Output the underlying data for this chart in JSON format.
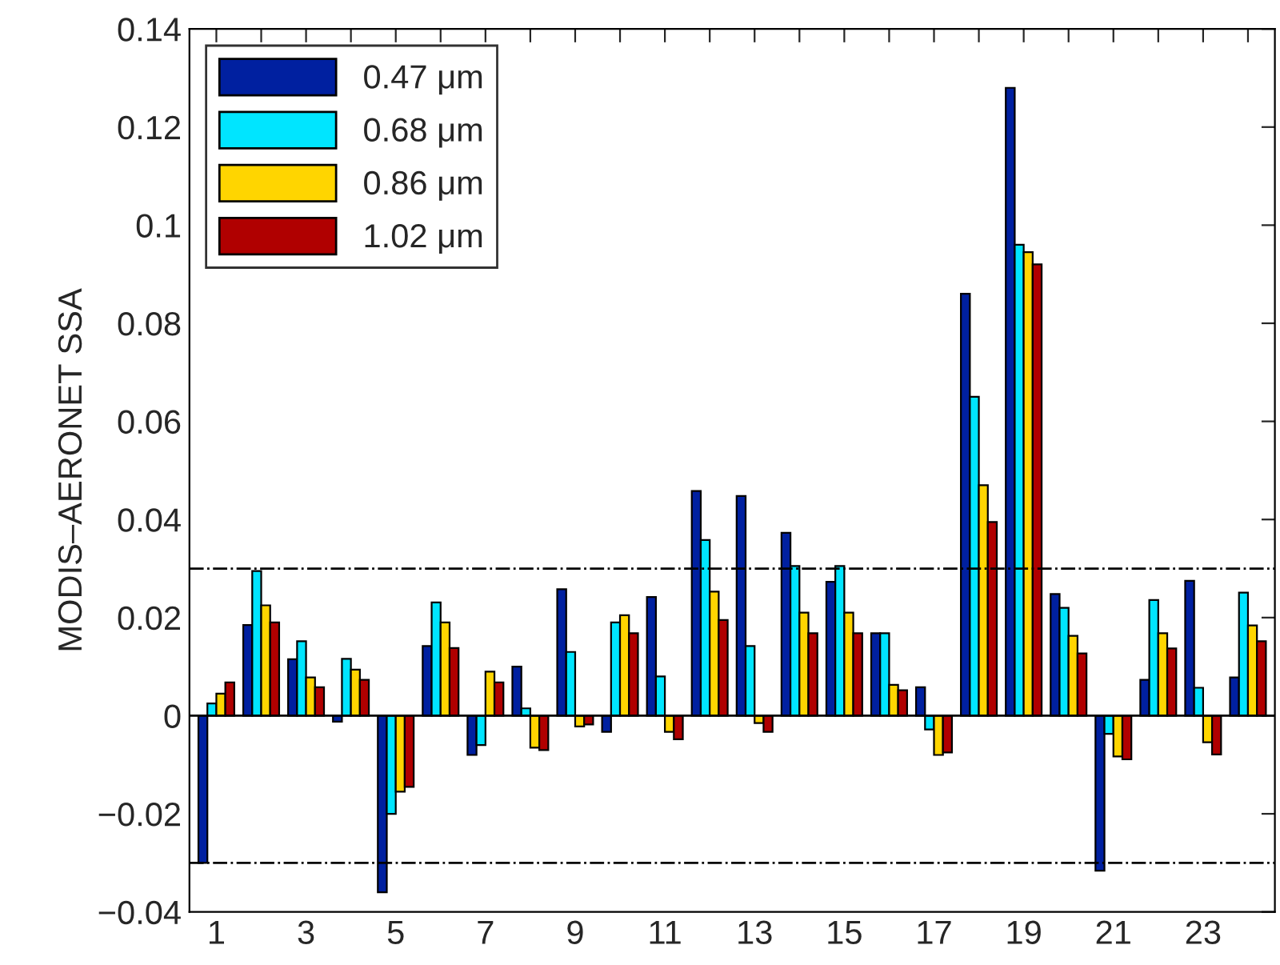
{
  "chart_data": {
    "type": "bar",
    "ylabel": "MODIS–AERONET SSA",
    "categories": [
      "1",
      null,
      "3",
      null,
      "5",
      null,
      "7",
      null,
      "9",
      null,
      "11",
      null,
      "13",
      null,
      "15",
      null,
      "17",
      null,
      "19",
      null,
      "21",
      null,
      "23",
      null
    ],
    "series": [
      {
        "name": "0.47 μm",
        "color": "#0020a0",
        "values": [
          -0.03,
          0.0185,
          0.0115,
          -0.0012,
          -0.036,
          0.0142,
          -0.008,
          0.01,
          0.0258,
          -0.0033,
          0.0242,
          0.0458,
          0.0448,
          0.0373,
          0.0273,
          0.0168,
          0.0058,
          0.086,
          0.128,
          0.0248,
          -0.0316,
          0.0073,
          0.0275,
          0.0078
        ]
      },
      {
        "name": "0.68 μm",
        "color": "#00e5ff",
        "values": [
          0.0025,
          0.0295,
          0.0152,
          0.0116,
          -0.02,
          0.0231,
          -0.006,
          0.0015,
          0.013,
          0.019,
          0.008,
          0.0358,
          0.0142,
          0.0305,
          0.0305,
          0.0168,
          -0.0028,
          0.065,
          0.096,
          0.022,
          -0.0037,
          0.0236,
          0.0057,
          0.0251
        ]
      },
      {
        "name": "0.86 μm",
        "color": "#ffd500",
        "values": [
          0.0045,
          0.0225,
          0.0078,
          0.0094,
          -0.0155,
          0.019,
          0.009,
          -0.0065,
          -0.0022,
          0.0205,
          -0.0033,
          0.0253,
          -0.0015,
          0.021,
          0.021,
          0.0063,
          -0.008,
          0.047,
          0.0945,
          0.0163,
          -0.0083,
          0.0168,
          -0.0054,
          0.0184
        ]
      },
      {
        "name": "1.02 μm",
        "color": "#b00000",
        "values": [
          0.0068,
          0.019,
          0.0058,
          0.0073,
          -0.0145,
          0.0138,
          0.0068,
          -0.007,
          -0.0018,
          0.0168,
          -0.0048,
          0.0195,
          -0.0033,
          0.0168,
          0.0168,
          0.0052,
          -0.0075,
          0.0395,
          0.092,
          0.0127,
          -0.0089,
          0.0137,
          -0.0079,
          0.0152
        ]
      }
    ],
    "ylim": [
      -0.04,
      0.14
    ],
    "yticks": [
      {
        "value": -0.04,
        "label": "−0.04"
      },
      {
        "value": -0.02,
        "label": "−0.02"
      },
      0,
      0.02,
      0.04,
      0.06,
      0.08,
      {
        "value": 0.1,
        "label": "0.1"
      },
      0.12,
      0.14
    ],
    "ref_lines": [
      {
        "axis": "y",
        "value": 0.03,
        "color": "#000000",
        "line_style": "dashdot"
      },
      {
        "axis": "y",
        "value": -0.03,
        "color": "#000000",
        "line_style": "dashdot"
      }
    ],
    "legend": "top left"
  }
}
